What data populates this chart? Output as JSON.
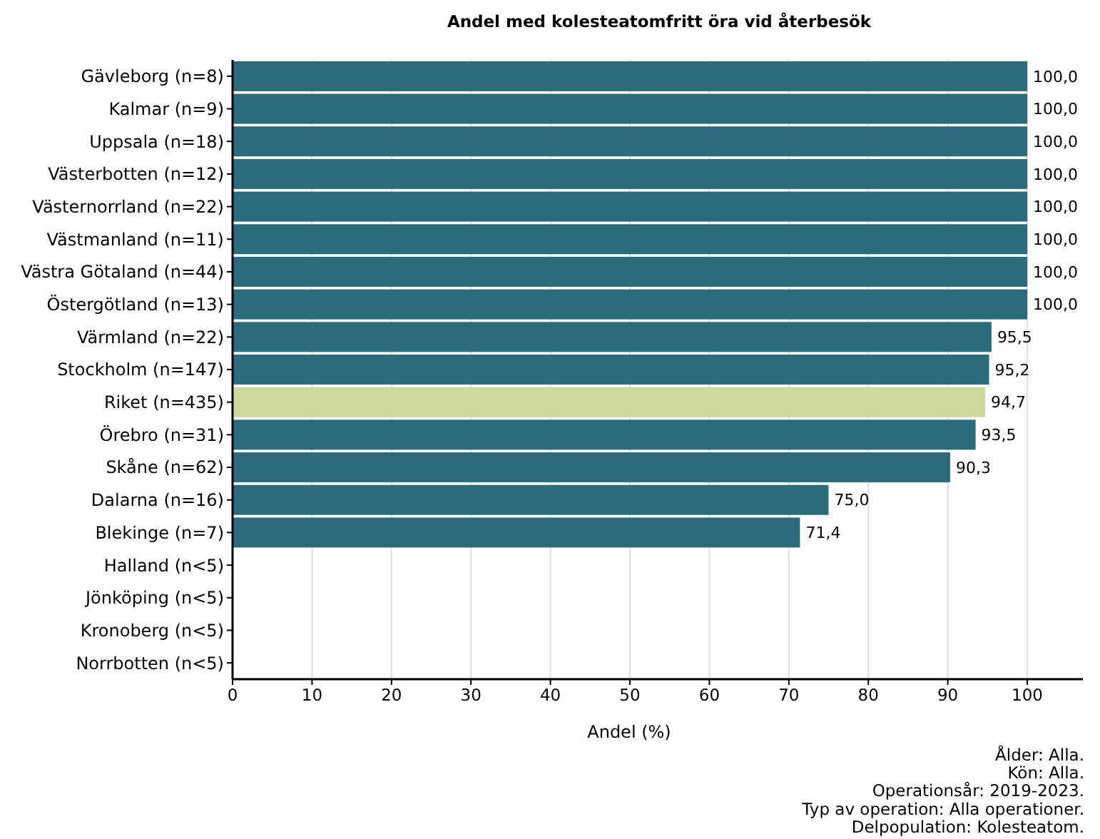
{
  "chart_data": {
    "type": "bar",
    "orientation": "horizontal",
    "title": "Andel med kolesteatomfritt öra vid återbesök",
    "xlabel": "Andel (%)",
    "categories": [
      "Gävleborg (n=8)",
      "Kalmar (n=9)",
      "Uppsala (n=18)",
      "Västerbotten (n=12)",
      "Västernorrland (n=22)",
      "Västmanland (n=11)",
      "Västra Götaland (n=44)",
      "Östergötland (n=13)",
      "Värmland (n=22)",
      "Stockholm (n=147)",
      "Riket (n=435)",
      "Örebro (n=31)",
      "Skåne (n=62)",
      "Dalarna (n=16)",
      "Blekinge (n=7)",
      "Halland (n<5)",
      "Jönköping (n<5)",
      "Kronoberg (n<5)",
      "Norrbotten (n<5)"
    ],
    "values": [
      100,
      100,
      100,
      100,
      100,
      100,
      100,
      100,
      95.5,
      95.2,
      94.7,
      93.5,
      90.3,
      75,
      71.4,
      null,
      null,
      null,
      null
    ],
    "value_labels": [
      "100,0",
      "100,0",
      "100,0",
      "100,0",
      "100,0",
      "100,0",
      "100,0",
      "100,0",
      "95,5",
      "95,2",
      "94,7",
      "93,5",
      "90,3",
      "75,0",
      "71,4",
      null,
      null,
      null,
      null
    ],
    "colors": [
      "#2a6b7c",
      "#2a6b7c",
      "#2a6b7c",
      "#2a6b7c",
      "#2a6b7c",
      "#2a6b7c",
      "#2a6b7c",
      "#2a6b7c",
      "#2a6b7c",
      "#2a6b7c",
      "#cdd99c",
      "#2a6b7c",
      "#2a6b7c",
      "#2a6b7c",
      "#2a6b7c",
      null,
      null,
      null,
      null
    ],
    "xlim": [
      0,
      107
    ],
    "xticks": [
      0,
      10,
      20,
      30,
      40,
      50,
      60,
      70,
      80,
      90,
      100
    ],
    "grid": "x",
    "annotations": [
      "Ålder: Alla.",
      "Kön: Alla.",
      "Operationsår: 2019-2023.",
      "Typ av operation: Alla operationer.",
      "Delpopulation: Kolesteatom."
    ]
  }
}
